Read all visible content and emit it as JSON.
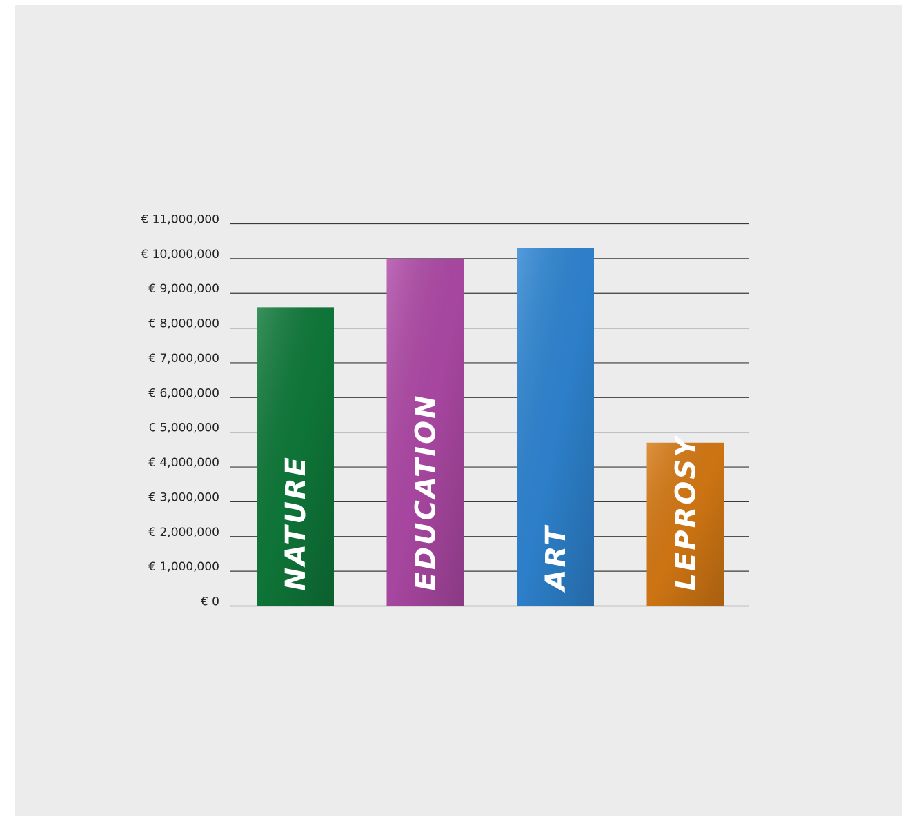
{
  "chart_data": {
    "type": "bar",
    "title": "",
    "xlabel": "",
    "ylabel": "",
    "categories": [
      "NATURE",
      "EDUCATION",
      "ART",
      "LEPROSY"
    ],
    "values": [
      8600000,
      10000000,
      10300000,
      4700000
    ],
    "colors": [
      "#0f7a3a",
      "#b04aa8",
      "#2f86d4",
      "#d77a14"
    ],
    "ylim": [
      0,
      11000000
    ],
    "yticks": [
      "€ 0",
      "€ 1,000,000",
      "€ 2,000,000",
      "€ 3,000,000",
      "€ 4,000,000",
      "€ 5,000,000",
      "€ 6,000,000",
      "€ 7,000,000",
      "€ 8,000,000",
      "€ 9,000,000",
      "€ 10,000,000",
      "€ 11,000,000"
    ],
    "grid": true,
    "legend": "none"
  }
}
